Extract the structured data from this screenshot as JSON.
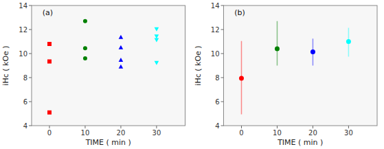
{
  "chart_data": [
    {
      "type": "scatter",
      "title": "(a)",
      "series": [
        {
          "x": [
            0,
            0,
            0
          ],
          "values": [
            5.1,
            9.35,
            10.8
          ],
          "color": "red",
          "marker": "square"
        },
        {
          "x": [
            10,
            10,
            10
          ],
          "values": [
            9.6,
            10.45,
            12.7
          ],
          "color": "green",
          "marker": "circle"
        },
        {
          "x": [
            20,
            20,
            20,
            20
          ],
          "values": [
            8.9,
            9.45,
            10.5,
            11.35
          ],
          "color": "blue",
          "marker": "triangle-up"
        },
        {
          "x": [
            30,
            30,
            30,
            30
          ],
          "values": [
            9.25,
            11.15,
            11.45,
            12.05
          ],
          "color": "cyan",
          "marker": "triangle-down"
        }
      ],
      "xlim": [
        -5,
        38
      ],
      "xticks": [
        0,
        10,
        20,
        30
      ],
      "ylim": [
        4,
        14
      ],
      "yticks": [
        4,
        6,
        8,
        10,
        12,
        14
      ],
      "x_label": "TIME ( min )",
      "y_label": "iHc ( kOe )"
    },
    {
      "type": "scatter",
      "title": "(b)",
      "x": [
        0,
        10,
        20,
        30
      ],
      "values": [
        7.95,
        10.4,
        10.15,
        11.0
      ],
      "yerr_low": [
        3.0,
        1.4,
        1.15,
        1.25
      ],
      "yerr_high": [
        3.1,
        2.3,
        1.1,
        1.15
      ],
      "colors": [
        "red",
        "green",
        "blue",
        "cyan"
      ],
      "marker": "circle",
      "xlim": [
        -5,
        38
      ],
      "xticks": [
        0,
        10,
        20,
        30
      ],
      "ylim": [
        4,
        14
      ],
      "yticks": [
        4,
        6,
        8,
        10,
        12,
        14
      ],
      "x_label": "TIME ( min )",
      "y_label": "iHc ( kOe )"
    }
  ]
}
